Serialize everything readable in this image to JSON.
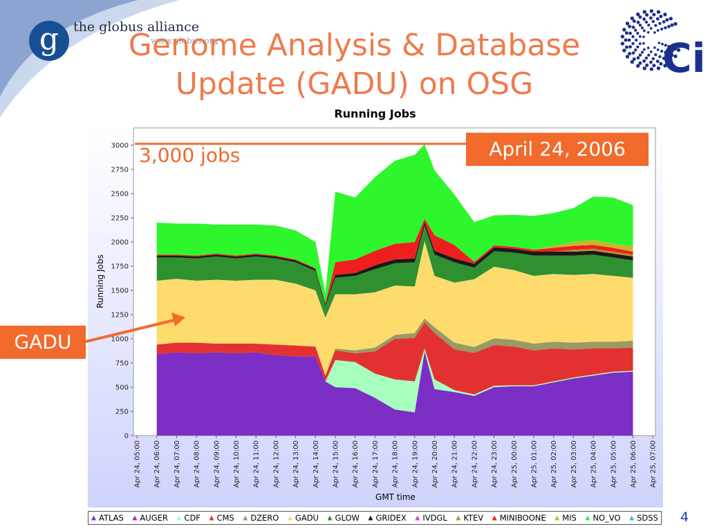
{
  "slide": {
    "title_lines": [
      "Genome Analysis & Database",
      "Update (GADU) on OSG"
    ],
    "page_number": "4",
    "accent_color": "#f26a2c",
    "title_color": "#ee7b4b"
  },
  "logos": {
    "globus_glyph": "g",
    "globus_name": "the globus alliance",
    "globus_url": "www.globus.org",
    "ci_text": "Ci"
  },
  "annotations": {
    "date_callout": "April 24, 2006",
    "jobs_label": "3,000 jobs",
    "gadu_callout": "GADU"
  },
  "chart_data": {
    "type": "area",
    "stacked": true,
    "title": "Running Jobs",
    "xlabel": "GMT time",
    "ylabel": "Running Jobs",
    "ylim": [
      0,
      3000
    ],
    "yticks": [
      "0",
      "250",
      "500",
      "750",
      "1000",
      "1250",
      "1500",
      "1750",
      "2000",
      "2250",
      "2500",
      "2750",
      "3000"
    ],
    "xticks": [
      "Apr 24, 05:00",
      "Apr 24, 06:00",
      "Apr 24, 07:00",
      "Apr 24, 08:00",
      "Apr 24, 09:00",
      "Apr 24, 10:00",
      "Apr 24, 11:00",
      "Apr 24, 12:00",
      "Apr 24, 13:00",
      "Apr 24, 14:00",
      "Apr 24, 15:00",
      "Apr 24, 16:00",
      "Apr 24, 17:00",
      "Apr 24, 18:00",
      "Apr 24, 19:00",
      "Apr 24, 20:00",
      "Apr 24, 21:00",
      "Apr 24, 22:00",
      "Apr 24, 23:00",
      "Apr 25, 00:00",
      "Apr 25, 01:00",
      "Apr 25, 02:00",
      "Apr 25, 03:00",
      "Apr 25, 04:00",
      "Apr 25, 05:00",
      "Apr 25, 06:00",
      "Apr 25, 07:00"
    ],
    "grid": false,
    "legend_position": "bottom",
    "x": [
      "Apr 24, 06:00",
      "Apr 24, 07:00",
      "Apr 24, 08:00",
      "Apr 24, 09:00",
      "Apr 24, 10:00",
      "Apr 24, 11:00",
      "Apr 24, 12:00",
      "Apr 24, 13:00",
      "Apr 24, 14:00",
      "Apr 24, 14:30",
      "Apr 24, 15:00",
      "Apr 24, 16:00",
      "Apr 24, 17:00",
      "Apr 24, 18:00",
      "Apr 24, 19:00",
      "Apr 24, 19:30",
      "Apr 24, 20:00",
      "Apr 24, 21:00",
      "Apr 24, 22:00",
      "Apr 24, 23:00",
      "Apr 25, 00:00",
      "Apr 25, 01:00",
      "Apr 25, 02:00",
      "Apr 25, 03:00",
      "Apr 25, 04:00",
      "Apr 25, 05:00",
      "Apr 25, 06:00"
    ],
    "series": [
      {
        "name": "ATLAS",
        "color": "#7b2fc4",
        "values": [
          840,
          860,
          850,
          860,
          850,
          860,
          830,
          820,
          820,
          560,
          500,
          490,
          390,
          270,
          240,
          870,
          480,
          450,
          410,
          500,
          510,
          510,
          550,
          590,
          620,
          650,
          660
        ]
      },
      {
        "name": "AUGER",
        "color": "#c21fc4",
        "values": [
          0,
          0,
          0,
          0,
          0,
          0,
          0,
          0,
          0,
          0,
          0,
          0,
          0,
          0,
          0,
          0,
          0,
          0,
          0,
          0,
          0,
          0,
          0,
          0,
          0,
          0,
          0
        ]
      },
      {
        "name": "CDF",
        "color": "#a6ffbe",
        "values": [
          0,
          0,
          0,
          0,
          0,
          0,
          0,
          0,
          0,
          0,
          280,
          270,
          250,
          310,
          320,
          30,
          100,
          20,
          15,
          15,
          10,
          10,
          10,
          10,
          10,
          10,
          10
        ]
      },
      {
        "name": "CMS",
        "color": "#e33131",
        "values": [
          100,
          100,
          110,
          90,
          100,
          90,
          110,
          110,
          100,
          60,
          100,
          90,
          230,
          420,
          450,
          270,
          480,
          420,
          430,
          420,
          400,
          360,
          340,
          290,
          270,
          240,
          240
        ]
      },
      {
        "name": "DZERO",
        "color": "#9a9a63",
        "values": [
          0,
          0,
          0,
          0,
          0,
          0,
          0,
          0,
          0,
          0,
          20,
          30,
          40,
          40,
          50,
          40,
          60,
          70,
          60,
          70,
          70,
          70,
          70,
          70,
          70,
          70,
          70
        ]
      },
      {
        "name": "GADU",
        "color": "#fddb6d",
        "values": [
          660,
          660,
          640,
          660,
          650,
          660,
          670,
          640,
          580,
          600,
          560,
          580,
          570,
          510,
          480,
          800,
          530,
          620,
          700,
          740,
          720,
          700,
          700,
          700,
          700,
          680,
          650
        ]
      },
      {
        "name": "GLOW",
        "color": "#2f902f",
        "values": [
          240,
          220,
          230,
          240,
          230,
          240,
          220,
          220,
          200,
          120,
          170,
          190,
          240,
          230,
          250,
          160,
          220,
          210,
          120,
          160,
          180,
          210,
          190,
          200,
          200,
          190,
          180
        ]
      },
      {
        "name": "GRIDEX",
        "color": "#1a1a1a",
        "values": [
          20,
          20,
          20,
          20,
          20,
          20,
          20,
          20,
          20,
          20,
          30,
          30,
          40,
          40,
          40,
          40,
          40,
          40,
          40,
          40,
          40,
          40,
          40,
          40,
          40,
          40,
          40
        ]
      },
      {
        "name": "IVDGL",
        "color": "#e233e2",
        "values": [
          0,
          0,
          0,
          0,
          0,
          0,
          0,
          0,
          0,
          0,
          0,
          0,
          0,
          0,
          0,
          0,
          0,
          0,
          0,
          0,
          0,
          0,
          0,
          0,
          0,
          0,
          0
        ]
      },
      {
        "name": "KTEV",
        "color": "#b6902a",
        "values": [
          0,
          0,
          0,
          0,
          0,
          0,
          0,
          0,
          0,
          0,
          0,
          0,
          0,
          0,
          0,
          0,
          0,
          0,
          0,
          0,
          0,
          0,
          0,
          20,
          20,
          20,
          20
        ]
      },
      {
        "name": "MINIBOONE",
        "color": "#ef1f1f",
        "values": [
          10,
          10,
          10,
          10,
          10,
          10,
          10,
          10,
          10,
          10,
          130,
          140,
          150,
          160,
          170,
          30,
          160,
          140,
          20,
          20,
          20,
          20,
          40,
          40,
          40,
          40,
          30
        ]
      },
      {
        "name": "MIS",
        "color": "#c8b62b",
        "values": [
          0,
          0,
          0,
          0,
          0,
          0,
          0,
          0,
          0,
          0,
          0,
          0,
          0,
          0,
          0,
          0,
          0,
          0,
          0,
          0,
          0,
          0,
          20,
          40,
          50,
          40,
          60
        ]
      },
      {
        "name": "NO_VO",
        "color": "#2df62d",
        "values": [
          330,
          320,
          330,
          300,
          320,
          300,
          310,
          300,
          270,
          100,
          730,
          640,
          760,
          860,
          900,
          770,
          670,
          520,
          410,
          310,
          330,
          350,
          340,
          350,
          450,
          480,
          420
        ]
      },
      {
        "name": "SDSS",
        "color": "#3ebcc7",
        "values": [
          0,
          0,
          0,
          0,
          0,
          0,
          0,
          0,
          0,
          0,
          0,
          0,
          0,
          0,
          0,
          0,
          0,
          0,
          0,
          0,
          0,
          0,
          0,
          0,
          0,
          0,
          0
        ]
      }
    ]
  }
}
